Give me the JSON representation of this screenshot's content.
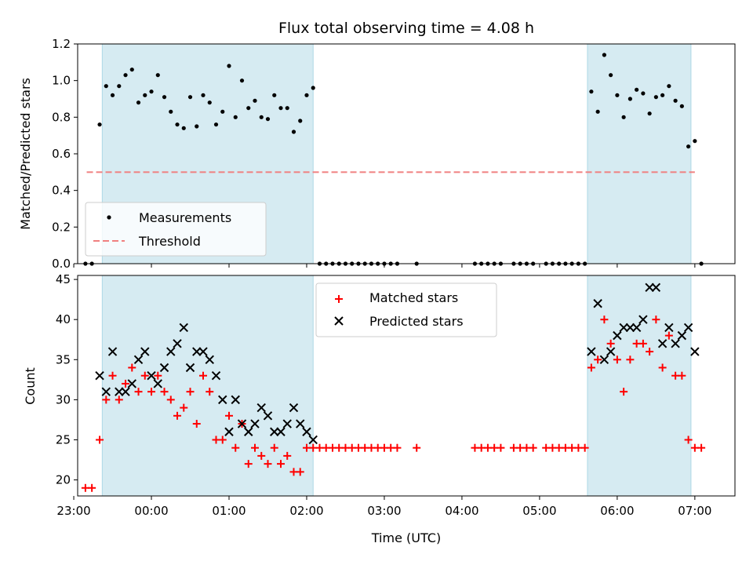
{
  "chart_data": {
    "title": "Flux total observing time = 4.08 h",
    "xlabel": "Time (UTC)",
    "x_ticks": [
      "23:00",
      "00:00",
      "01:00",
      "02:00",
      "03:00",
      "04:00",
      "05:00",
      "06:00",
      "07:00"
    ],
    "shaded_intervals": [
      [
        "23:22",
        "02:05"
      ],
      [
        "05:37",
        "06:57"
      ]
    ],
    "shade_color": "#add8e6",
    "panels": [
      {
        "type": "scatter",
        "ylabel": "Matched/Predicted stars",
        "ylim": [
          0,
          1.2
        ],
        "yticks": [
          "0.0",
          "0.2",
          "0.4",
          "0.6",
          "0.8",
          "1.0",
          "1.2"
        ],
        "legend_position": "lower-left",
        "series": [
          {
            "name": "Measurements",
            "marker": "dot",
            "color": "#000000",
            "points": [
              [
                "23:09",
                0.0
              ],
              [
                "23:14",
                0.0
              ],
              [
                "23:20",
                0.76
              ],
              [
                "23:25",
                0.97
              ],
              [
                "23:30",
                0.92
              ],
              [
                "23:35",
                0.97
              ],
              [
                "23:40",
                1.03
              ],
              [
                "23:45",
                1.06
              ],
              [
                "23:50",
                0.88
              ],
              [
                "23:55",
                0.92
              ],
              [
                "00:00",
                0.94
              ],
              [
                "00:05",
                1.03
              ],
              [
                "00:10",
                0.91
              ],
              [
                "00:15",
                0.83
              ],
              [
                "00:20",
                0.76
              ],
              [
                "00:25",
                0.74
              ],
              [
                "00:30",
                0.91
              ],
              [
                "00:35",
                0.75
              ],
              [
                "00:40",
                0.92
              ],
              [
                "00:45",
                0.88
              ],
              [
                "00:50",
                0.76
              ],
              [
                "00:55",
                0.83
              ],
              [
                "01:00",
                1.08
              ],
              [
                "01:05",
                0.8
              ],
              [
                "01:10",
                1.0
              ],
              [
                "01:15",
                0.85
              ],
              [
                "01:20",
                0.89
              ],
              [
                "01:25",
                0.8
              ],
              [
                "01:30",
                0.79
              ],
              [
                "01:35",
                0.92
              ],
              [
                "01:40",
                0.85
              ],
              [
                "01:45",
                0.85
              ],
              [
                "01:50",
                0.72
              ],
              [
                "01:55",
                0.78
              ],
              [
                "02:00",
                0.92
              ],
              [
                "02:05",
                0.96
              ],
              [
                "02:10",
                0.0
              ],
              [
                "02:15",
                0.0
              ],
              [
                "02:20",
                0.0
              ],
              [
                "02:25",
                0.0
              ],
              [
                "02:30",
                0.0
              ],
              [
                "02:35",
                0.0
              ],
              [
                "02:40",
                0.0
              ],
              [
                "02:45",
                0.0
              ],
              [
                "02:50",
                0.0
              ],
              [
                "02:55",
                0.0
              ],
              [
                "03:00",
                0.0
              ],
              [
                "03:05",
                0.0
              ],
              [
                "03:10",
                0.0
              ],
              [
                "03:25",
                0.0
              ],
              [
                "04:10",
                0.0
              ],
              [
                "04:15",
                0.0
              ],
              [
                "04:20",
                0.0
              ],
              [
                "04:25",
                0.0
              ],
              [
                "04:30",
                0.0
              ],
              [
                "04:40",
                0.0
              ],
              [
                "04:45",
                0.0
              ],
              [
                "04:50",
                0.0
              ],
              [
                "04:55",
                0.0
              ],
              [
                "05:05",
                0.0
              ],
              [
                "05:10",
                0.0
              ],
              [
                "05:15",
                0.0
              ],
              [
                "05:20",
                0.0
              ],
              [
                "05:25",
                0.0
              ],
              [
                "05:30",
                0.0
              ],
              [
                "05:35",
                0.0
              ],
              [
                "05:40",
                0.94
              ],
              [
                "05:45",
                0.83
              ],
              [
                "05:50",
                1.14
              ],
              [
                "05:55",
                1.03
              ],
              [
                "06:00",
                0.92
              ],
              [
                "06:05",
                0.8
              ],
              [
                "06:10",
                0.9
              ],
              [
                "06:15",
                0.95
              ],
              [
                "06:20",
                0.93
              ],
              [
                "06:25",
                0.82
              ],
              [
                "06:30",
                0.91
              ],
              [
                "06:35",
                0.92
              ],
              [
                "06:40",
                0.97
              ],
              [
                "06:45",
                0.89
              ],
              [
                "06:50",
                0.86
              ],
              [
                "06:55",
                0.64
              ],
              [
                "07:00",
                0.67
              ],
              [
                "07:05",
                0.0
              ]
            ]
          },
          {
            "name": "Threshold",
            "marker": "dashed-line",
            "color": "#f08080",
            "points": [
              [
                "23:10",
                0.5
              ],
              [
                "07:00",
                0.5
              ]
            ]
          }
        ]
      },
      {
        "type": "scatter",
        "ylabel": "Count",
        "ylim": [
          18,
          45.5
        ],
        "yticks": [
          "20",
          "25",
          "30",
          "35",
          "40",
          "45"
        ],
        "legend_position": "upper-center",
        "series": [
          {
            "name": "Matched stars",
            "marker": "plus",
            "color": "#ff0000",
            "points": [
              [
                "23:09",
                19
              ],
              [
                "23:14",
                19
              ],
              [
                "23:20",
                25
              ],
              [
                "23:25",
                30
              ],
              [
                "23:30",
                33
              ],
              [
                "23:35",
                30
              ],
              [
                "23:40",
                32
              ],
              [
                "23:45",
                34
              ],
              [
                "23:50",
                31
              ],
              [
                "23:55",
                33
              ],
              [
                "00:00",
                31
              ],
              [
                "00:05",
                33
              ],
              [
                "00:10",
                31
              ],
              [
                "00:15",
                30
              ],
              [
                "00:20",
                28
              ],
              [
                "00:25",
                29
              ],
              [
                "00:30",
                31
              ],
              [
                "00:35",
                27
              ],
              [
                "00:40",
                33
              ],
              [
                "00:45",
                31
              ],
              [
                "00:50",
                25
              ],
              [
                "00:55",
                25
              ],
              [
                "01:00",
                28
              ],
              [
                "01:05",
                24
              ],
              [
                "01:10",
                27
              ],
              [
                "01:15",
                22
              ],
              [
                "01:20",
                24
              ],
              [
                "01:25",
                23
              ],
              [
                "01:30",
                22
              ],
              [
                "01:35",
                24
              ],
              [
                "01:40",
                22
              ],
              [
                "01:45",
                23
              ],
              [
                "01:50",
                21
              ],
              [
                "01:55",
                21
              ],
              [
                "02:00",
                24
              ],
              [
                "02:05",
                24
              ],
              [
                "02:10",
                24
              ],
              [
                "02:15",
                24
              ],
              [
                "02:20",
                24
              ],
              [
                "02:25",
                24
              ],
              [
                "02:30",
                24
              ],
              [
                "02:35",
                24
              ],
              [
                "02:40",
                24
              ],
              [
                "02:45",
                24
              ],
              [
                "02:50",
                24
              ],
              [
                "02:55",
                24
              ],
              [
                "03:00",
                24
              ],
              [
                "03:05",
                24
              ],
              [
                "03:10",
                24
              ],
              [
                "03:25",
                24
              ],
              [
                "04:10",
                24
              ],
              [
                "04:15",
                24
              ],
              [
                "04:20",
                24
              ],
              [
                "04:25",
                24
              ],
              [
                "04:30",
                24
              ],
              [
                "04:40",
                24
              ],
              [
                "04:45",
                24
              ],
              [
                "04:50",
                24
              ],
              [
                "04:55",
                24
              ],
              [
                "05:05",
                24
              ],
              [
                "05:10",
                24
              ],
              [
                "05:15",
                24
              ],
              [
                "05:20",
                24
              ],
              [
                "05:25",
                24
              ],
              [
                "05:30",
                24
              ],
              [
                "05:35",
                24
              ],
              [
                "05:40",
                34
              ],
              [
                "05:45",
                35
              ],
              [
                "05:50",
                40
              ],
              [
                "05:55",
                37
              ],
              [
                "06:00",
                35
              ],
              [
                "06:05",
                31
              ],
              [
                "06:10",
                35
              ],
              [
                "06:15",
                37
              ],
              [
                "06:20",
                37
              ],
              [
                "06:25",
                36
              ],
              [
                "06:30",
                40
              ],
              [
                "06:35",
                34
              ],
              [
                "06:40",
                38
              ],
              [
                "06:45",
                33
              ],
              [
                "06:50",
                33
              ],
              [
                "06:55",
                25
              ],
              [
                "07:00",
                24
              ],
              [
                "07:05",
                24
              ]
            ]
          },
          {
            "name": "Predicted stars",
            "marker": "x",
            "color": "#000000",
            "points": [
              [
                "23:20",
                33
              ],
              [
                "23:25",
                31
              ],
              [
                "23:30",
                36
              ],
              [
                "23:35",
                31
              ],
              [
                "23:40",
                31
              ],
              [
                "23:45",
                32
              ],
              [
                "23:50",
                35
              ],
              [
                "23:55",
                36
              ],
              [
                "00:00",
                33
              ],
              [
                "00:05",
                32
              ],
              [
                "00:10",
                34
              ],
              [
                "00:15",
                36
              ],
              [
                "00:20",
                37
              ],
              [
                "00:25",
                39
              ],
              [
                "00:30",
                34
              ],
              [
                "00:35",
                36
              ],
              [
                "00:40",
                36
              ],
              [
                "00:45",
                35
              ],
              [
                "00:50",
                33
              ],
              [
                "00:55",
                30
              ],
              [
                "01:00",
                26
              ],
              [
                "01:05",
                30
              ],
              [
                "01:10",
                27
              ],
              [
                "01:15",
                26
              ],
              [
                "01:20",
                27
              ],
              [
                "01:25",
                29
              ],
              [
                "01:30",
                28
              ],
              [
                "01:35",
                26
              ],
              [
                "01:40",
                26
              ],
              [
                "01:45",
                27
              ],
              [
                "01:50",
                29
              ],
              [
                "01:55",
                27
              ],
              [
                "02:00",
                26
              ],
              [
                "02:05",
                25
              ],
              [
                "05:40",
                36
              ],
              [
                "05:45",
                42
              ],
              [
                "05:50",
                35
              ],
              [
                "05:55",
                36
              ],
              [
                "06:00",
                38
              ],
              [
                "06:05",
                39
              ],
              [
                "06:10",
                39
              ],
              [
                "06:15",
                39
              ],
              [
                "06:20",
                40
              ],
              [
                "06:25",
                44
              ],
              [
                "06:30",
                44
              ],
              [
                "06:35",
                37
              ],
              [
                "06:40",
                39
              ],
              [
                "06:45",
                37
              ],
              [
                "06:50",
                38
              ],
              [
                "06:55",
                39
              ],
              [
                "07:00",
                36
              ]
            ]
          }
        ]
      }
    ]
  }
}
